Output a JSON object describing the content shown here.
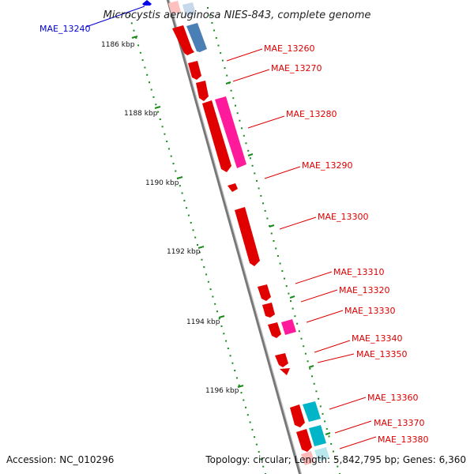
{
  "title": "Microcystis aeruginosa NIES-843, complete genome",
  "footer": {
    "accession": "Accession: NC_010296",
    "topology": "Topology: circular; Length: 5,842,795 bp; Genes: 6,360"
  },
  "colors": {
    "gene_red": "#ff0000",
    "gene_magenta": "#ff1493",
    "gene_steelblue": "#4a7fb5",
    "gene_cyan": "#00b5c8",
    "label_red": "#dd0000",
    "label_blue": "#0000cc",
    "tick_green": "#1a8a1a",
    "backbone": "#888888"
  },
  "kbp_ticks": [
    "1186 kbp",
    "1188 kbp",
    "1190 kbp",
    "1192 kbp",
    "1194 kbp",
    "1196 kbp"
  ],
  "genes_left": [
    {
      "label": "MAE_13240",
      "color": "blue"
    }
  ],
  "genes_right": [
    {
      "label": "MAE_13260"
    },
    {
      "label": "MAE_13270"
    },
    {
      "label": "MAE_13280"
    },
    {
      "label": "MAE_13290"
    },
    {
      "label": "MAE_13300"
    },
    {
      "label": "MAE_13310"
    },
    {
      "label": "MAE_13320"
    },
    {
      "label": "MAE_13330"
    },
    {
      "label": "MAE_13340"
    },
    {
      "label": "MAE_13350"
    },
    {
      "label": "MAE_13360"
    },
    {
      "label": "MAE_13370"
    },
    {
      "label": "MAE_13380"
    }
  ]
}
